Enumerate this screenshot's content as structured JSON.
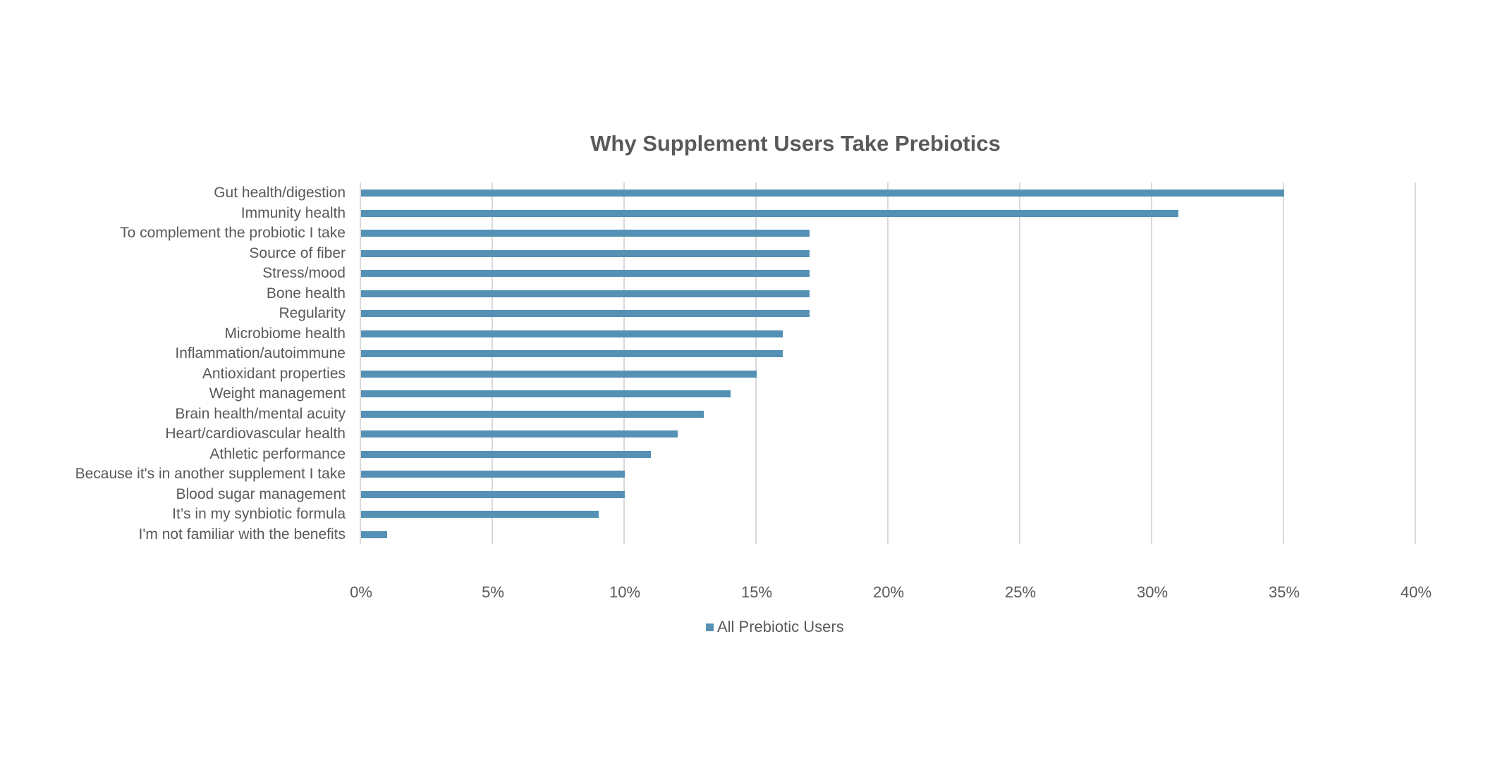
{
  "chart_data": {
    "type": "bar",
    "orientation": "horizontal",
    "title": "Why Supplement Users Take Prebiotics",
    "xlabel": "",
    "ylabel": "",
    "xlim": [
      0,
      40
    ],
    "x_ticks": [
      "0%",
      "5%",
      "10%",
      "15%",
      "20%",
      "25%",
      "30%",
      "35%",
      "40%"
    ],
    "grid": true,
    "legend_position": "bottom",
    "categories": [
      "Gut health/digestion",
      "Immunity health",
      "To complement the probiotic I take",
      "Source of fiber",
      "Stress/mood",
      "Bone health",
      "Regularity",
      "Microbiome health",
      "Inflammation/autoimmune",
      "Antioxidant properties",
      "Weight management",
      "Brain health/mental acuity",
      "Heart/cardiovascular health",
      "Athletic performance",
      "Because it's in another supplement I take",
      "Blood sugar management",
      "It’s in my synbiotic formula",
      "I'm not familiar with the benefits"
    ],
    "series": [
      {
        "name": "All Prebiotic Users",
        "color": "#5591b4",
        "values": [
          35,
          31,
          17,
          17,
          17,
          17,
          17,
          16,
          16,
          15,
          14,
          13,
          12,
          11,
          10,
          10,
          9,
          1
        ]
      }
    ]
  },
  "colors": {
    "bar": "#5591b4",
    "gridline": "#d9d9d9",
    "text": "#595959"
  }
}
